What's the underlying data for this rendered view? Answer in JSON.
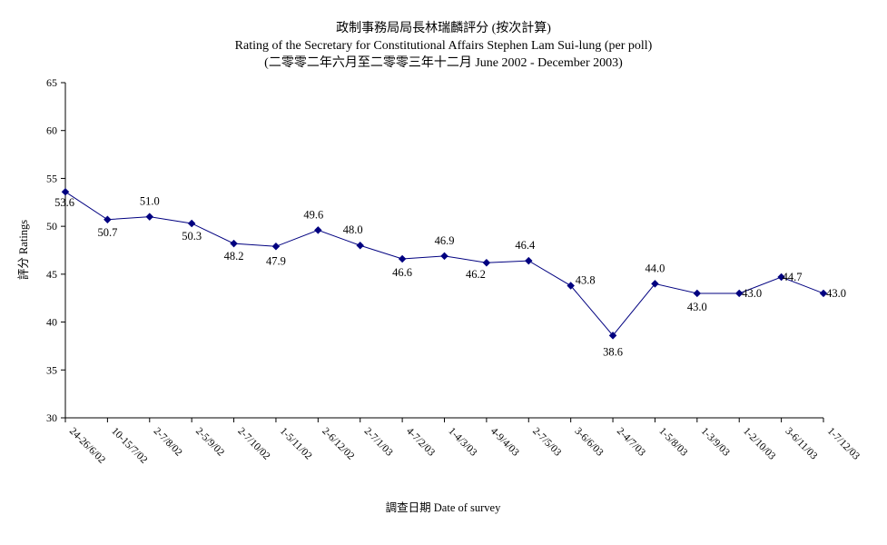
{
  "chart_data": {
    "type": "line",
    "title": "政制事務局局長林瑞麟評分 (按次計算)",
    "subtitle": "Rating of the Secretary for Constitutional Affairs Stephen Lam Sui-lung (per poll)",
    "subtitle2": "(二零零二年六月至二零零三年十二月 June 2002 - December 2003)",
    "xlabel": "調查日期 Date of survey",
    "ylabel": "評分 Ratings",
    "ylim": [
      30,
      65
    ],
    "yticks": [
      "30",
      "35",
      "40",
      "45",
      "50",
      "55",
      "60",
      "65"
    ],
    "grid": false,
    "categories": [
      "24-26/6/02",
      "10-15/7/02",
      "2-7/8/02",
      "2-5/9/02",
      "2-7/10/02",
      "1-5/11/02",
      "2-6/12/02",
      "2-7/1/03",
      "4-7/2/03",
      "1-4/3/03",
      "4-9/4/03",
      "2-7/5/03",
      "3-6/6/03",
      "2-4/7/03",
      "1-5/8/03",
      "1-3/9/03",
      "1-2/10/03",
      "3-6/11/03",
      "1-7/12/03"
    ],
    "series": [
      {
        "values": [
          53.6,
          50.7,
          51.0,
          50.3,
          48.2,
          47.9,
          49.6,
          48.0,
          46.6,
          46.9,
          46.2,
          46.4,
          43.8,
          38.6,
          44.0,
          43.0,
          43.0,
          44.7,
          43.0
        ],
        "labels": [
          "53.6",
          "50.7",
          "51.0",
          "50.3",
          "48.2",
          "47.9",
          "49.6",
          "48.0",
          "46.6",
          "46.9",
          "46.2",
          "46.4",
          "43.8",
          "38.6",
          "44.0",
          "43.0",
          "43.0",
          "44.7",
          "43.0"
        ],
        "color": "#000080"
      }
    ]
  }
}
